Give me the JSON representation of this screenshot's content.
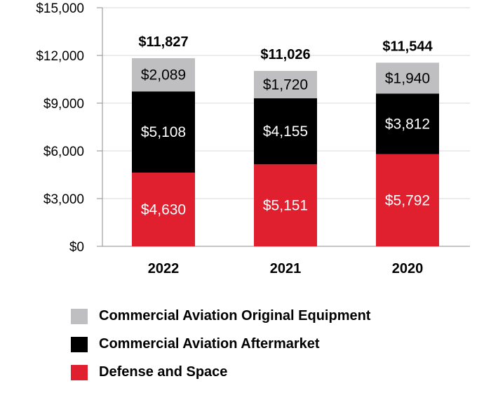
{
  "chart_data": {
    "type": "bar",
    "stacked": true,
    "categories": [
      "2022",
      "2021",
      "2020"
    ],
    "series": [
      {
        "name": "Defense and Space",
        "values": [
          4630,
          5151,
          5792
        ],
        "color": "#e0202f",
        "label_color": "#ffffff"
      },
      {
        "name": "Commercial Aviation Aftermarket",
        "values": [
          5108,
          4155,
          3812
        ],
        "color": "#000000",
        "label_color": "#ffffff"
      },
      {
        "name": "Commercial Aviation Original Equipment",
        "values": [
          2089,
          1720,
          1940
        ],
        "color": "#bfbfc1",
        "label_color": "#000000"
      }
    ],
    "totals": [
      11827,
      11026,
      11544
    ],
    "value_labels": {
      "Defense and Space": [
        "$4,630",
        "$5,151",
        "$5,792"
      ],
      "Commercial Aviation Aftermarket": [
        "$5,108",
        "$4,155",
        "$3,812"
      ],
      "Commercial Aviation Original Equipment": [
        "$2,089",
        "$1,720",
        "$1,940"
      ]
    },
    "total_labels": [
      "$11,827",
      "$11,026",
      "$11,544"
    ],
    "y_ticks": [
      0,
      3000,
      6000,
      9000,
      12000,
      15000
    ],
    "y_tick_labels": [
      "$0",
      "$3,000",
      "$6,000",
      "$9,000",
      "$12,000",
      "$15,000"
    ],
    "ylim": [
      0,
      15000
    ],
    "grid": true,
    "title": "",
    "xlabel": "",
    "ylabel": "",
    "legend_position": "bottom",
    "legend_order": [
      "Commercial Aviation Original Equipment",
      "Commercial Aviation Aftermarket",
      "Defense and Space"
    ]
  }
}
